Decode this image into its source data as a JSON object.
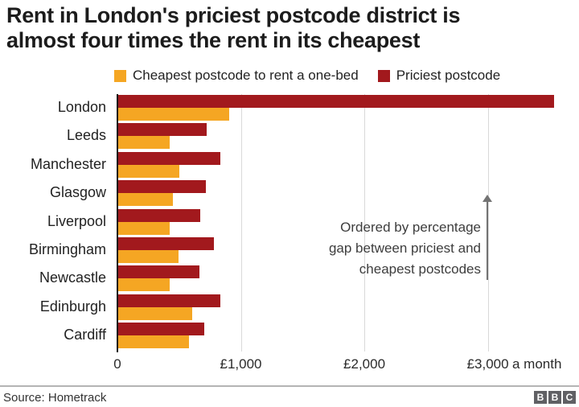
{
  "header": {
    "title_lines": [
      "Rent in London's priciest postcode district is",
      "almost four times the rent in its cheapest"
    ]
  },
  "chart_data": {
    "type": "bar",
    "orientation": "horizontal",
    "title": "Rent in London's priciest postcode district is almost four times the rent in its cheapest",
    "unit": "£ a month",
    "categories": [
      "London",
      "Leeds",
      "Manchester",
      "Glasgow",
      "Liverpool",
      "Birmingham",
      "Newcastle",
      "Edinburgh",
      "Cardiff"
    ],
    "series": [
      {
        "name": "Cheapest postcode to rent a one-bed",
        "color": "#f5a623",
        "values": [
          900,
          420,
          495,
          445,
          415,
          490,
          420,
          600,
          570
        ]
      },
      {
        "name": "Priciest postcode",
        "color": "#a2191d",
        "values": [
          3530,
          715,
          825,
          710,
          665,
          775,
          660,
          825,
          700
        ]
      }
    ],
    "x_ticks": [
      0,
      1000,
      2000,
      3000
    ],
    "x_tick_labels": [
      "0",
      "£1,000",
      "£2,000",
      "£3,000"
    ],
    "x_suffix": "a month",
    "xlim": [
      0,
      3680
    ],
    "grid": "vertical",
    "legend_position": "top",
    "sort_note": "Ordered by percentage gap between priciest and cheapest postcodes"
  },
  "annotation": {
    "lines": [
      "Ordered by percentage",
      "gap between priciest and",
      "cheapest postcodes"
    ]
  },
  "footer": {
    "source": "Source: Hometrack",
    "logo_letters": [
      "B",
      "B",
      "C"
    ]
  }
}
